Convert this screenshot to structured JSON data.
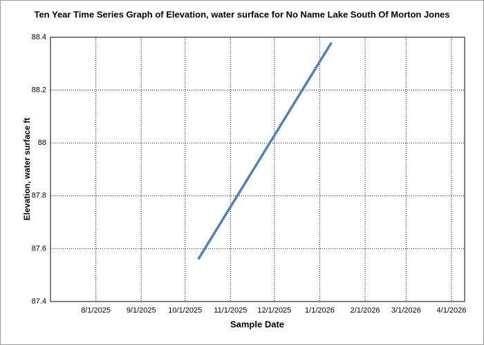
{
  "chart_data": {
    "type": "line",
    "title": "Ten Year Time Series Graph of Elevation, water surface for No Name Lake South Of Morton Jones",
    "x_label": "Sample Date",
    "y_label": "Elevation, water surface ft",
    "x": [
      "2025-10-10",
      "2026-01-09"
    ],
    "values": [
      87.56,
      88.38
    ],
    "color": "#4f81bd",
    "xlim": [
      "2025-07-01",
      "2026-04-10"
    ],
    "xticks": [
      {
        "value": "2025-08-01",
        "label": "8/1/2025"
      },
      {
        "value": "2025-09-01",
        "label": "9/1/2025"
      },
      {
        "value": "2025-10-01",
        "label": "10/1/2025"
      },
      {
        "value": "2025-11-01",
        "label": "11/1/2025"
      },
      {
        "value": "2025-12-01",
        "label": "12/1/2025"
      },
      {
        "value": "2026-01-01",
        "label": "1/1/2026"
      },
      {
        "value": "2026-02-01",
        "label": "2/1/2026"
      },
      {
        "value": "2026-03-01",
        "label": "3/1/2026"
      },
      {
        "value": "2026-04-01",
        "label": "4/1/2026"
      }
    ],
    "ylim": [
      87.4,
      88.4
    ],
    "yticks": [
      87.4,
      87.6,
      87.8,
      88,
      88.2,
      88.4
    ],
    "grid": true
  }
}
